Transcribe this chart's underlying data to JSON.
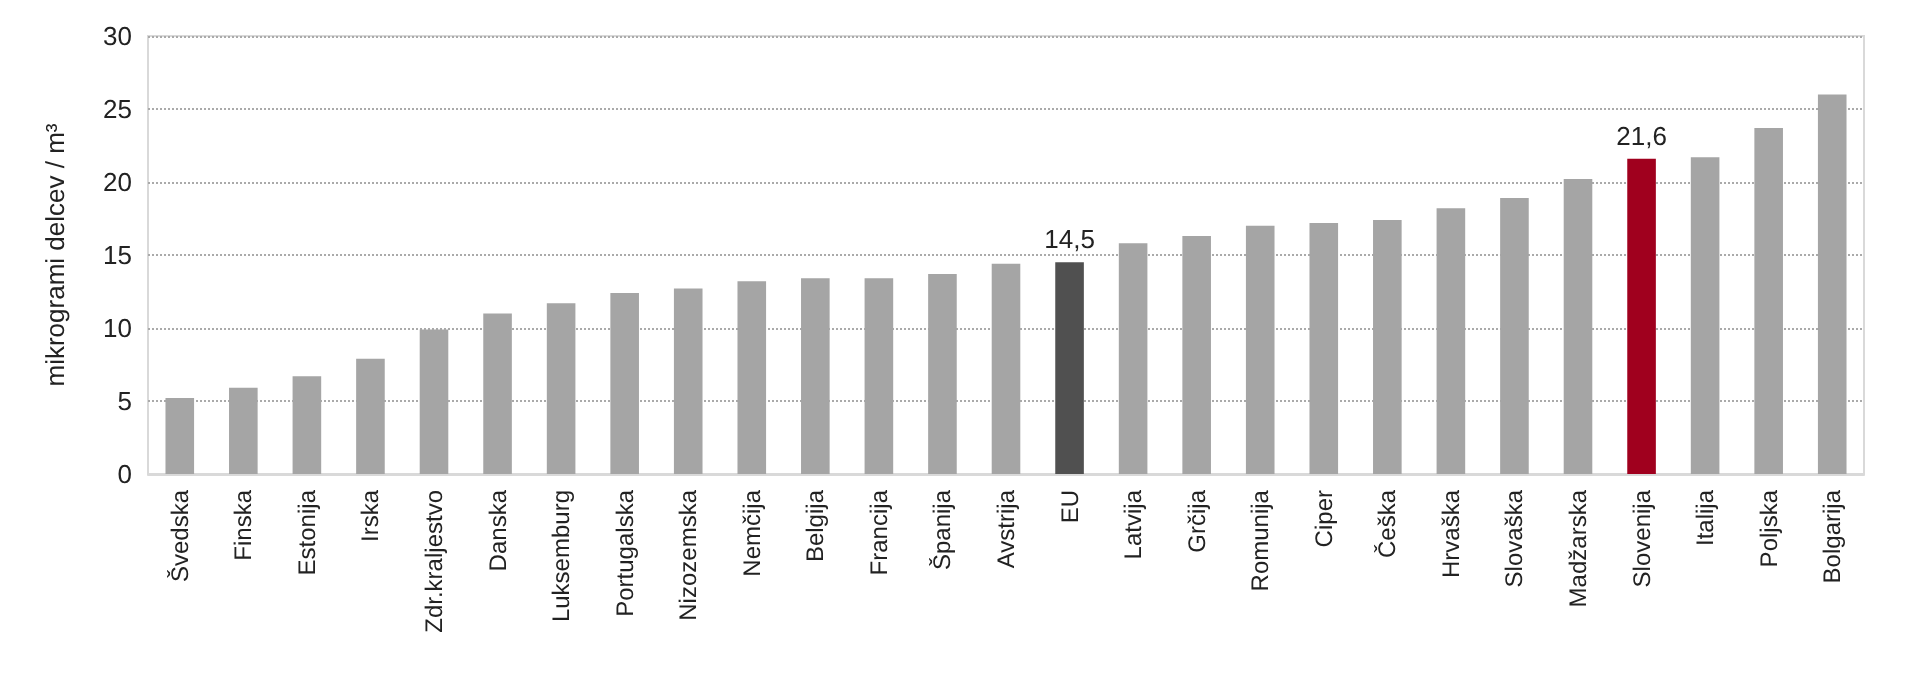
{
  "chart_data": {
    "type": "bar",
    "ylabel": "mikrogrami delcev / m³",
    "categories": [
      "Švedska",
      "Finska",
      "Estonija",
      "Irska",
      "Zdr.kraljestvo",
      "Danska",
      "Luksemburg",
      "Portugalska",
      "Nizozemska",
      "Nemčija",
      "Belgija",
      "Francija",
      "Španija",
      "Avstrija",
      "EU",
      "Latvija",
      "Grčija",
      "Romunija",
      "Ciper",
      "Češka",
      "Hrvaška",
      "Slovaška",
      "Madžarska",
      "Slovenija",
      "Italija",
      "Poljska",
      "Bolgarija"
    ],
    "values": [
      5.2,
      5.9,
      6.7,
      7.9,
      9.9,
      11.0,
      11.7,
      12.4,
      12.7,
      13.2,
      13.4,
      13.4,
      13.7,
      14.4,
      14.5,
      15.8,
      16.3,
      17.0,
      17.2,
      17.4,
      18.2,
      18.9,
      20.2,
      21.6,
      21.7,
      23.7,
      26.0
    ],
    "colors": [
      "#a5a5a5",
      "#a5a5a5",
      "#a5a5a5",
      "#a5a5a5",
      "#a5a5a5",
      "#a5a5a5",
      "#a5a5a5",
      "#a5a5a5",
      "#a5a5a5",
      "#a5a5a5",
      "#a5a5a5",
      "#a5a5a5",
      "#a5a5a5",
      "#a5a5a5",
      "#505050",
      "#a5a5a5",
      "#a5a5a5",
      "#a5a5a5",
      "#a5a5a5",
      "#a5a5a5",
      "#a5a5a5",
      "#a5a5a5",
      "#a5a5a5",
      "#a0001e",
      "#a5a5a5",
      "#a5a5a5",
      "#a5a5a5"
    ],
    "value_labels": [
      null,
      null,
      null,
      null,
      null,
      null,
      null,
      null,
      null,
      null,
      null,
      null,
      null,
      null,
      "14,5",
      null,
      null,
      null,
      null,
      null,
      null,
      null,
      null,
      "21,6",
      null,
      null,
      null
    ],
    "ylim": [
      0,
      30
    ],
    "yticks": [
      0,
      5,
      10,
      15,
      20,
      25,
      30
    ],
    "grid": "y"
  }
}
